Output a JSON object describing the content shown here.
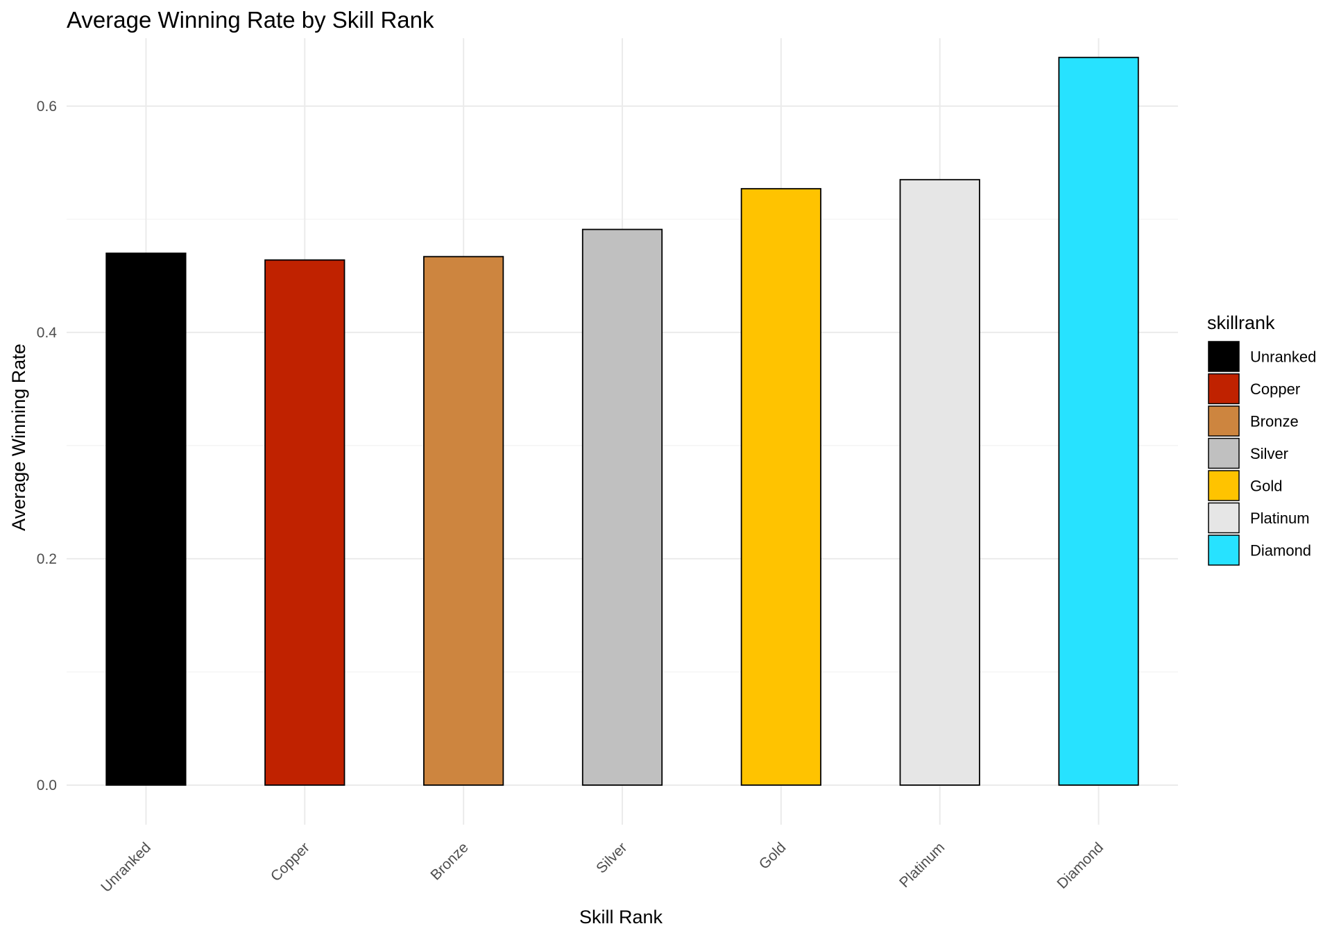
{
  "chart_data": {
    "type": "bar",
    "title": "Average Winning Rate by Skill Rank",
    "xlabel": "Skill Rank",
    "ylabel": "Average Winning Rate",
    "categories": [
      "Unranked",
      "Copper",
      "Bronze",
      "Silver",
      "Gold",
      "Platinum",
      "Diamond"
    ],
    "values": [
      0.47,
      0.464,
      0.467,
      0.491,
      0.527,
      0.535,
      0.643
    ],
    "colors": [
      "#000000",
      "#C02200",
      "#CD853F",
      "#C0C0C0",
      "#FFC300",
      "#E6E6E6",
      "#27E2FF"
    ],
    "ylim": [
      -0.035,
      0.66
    ],
    "yticks": [
      0.0,
      0.2,
      0.4,
      0.6
    ],
    "ytick_labels": [
      "0.0",
      "0.2",
      "0.4",
      "0.6"
    ],
    "grid": true,
    "legend": {
      "title": "skillrank",
      "placement": "right",
      "entries": [
        "Unranked",
        "Copper",
        "Bronze",
        "Silver",
        "Gold",
        "Platinum",
        "Diamond"
      ]
    }
  }
}
